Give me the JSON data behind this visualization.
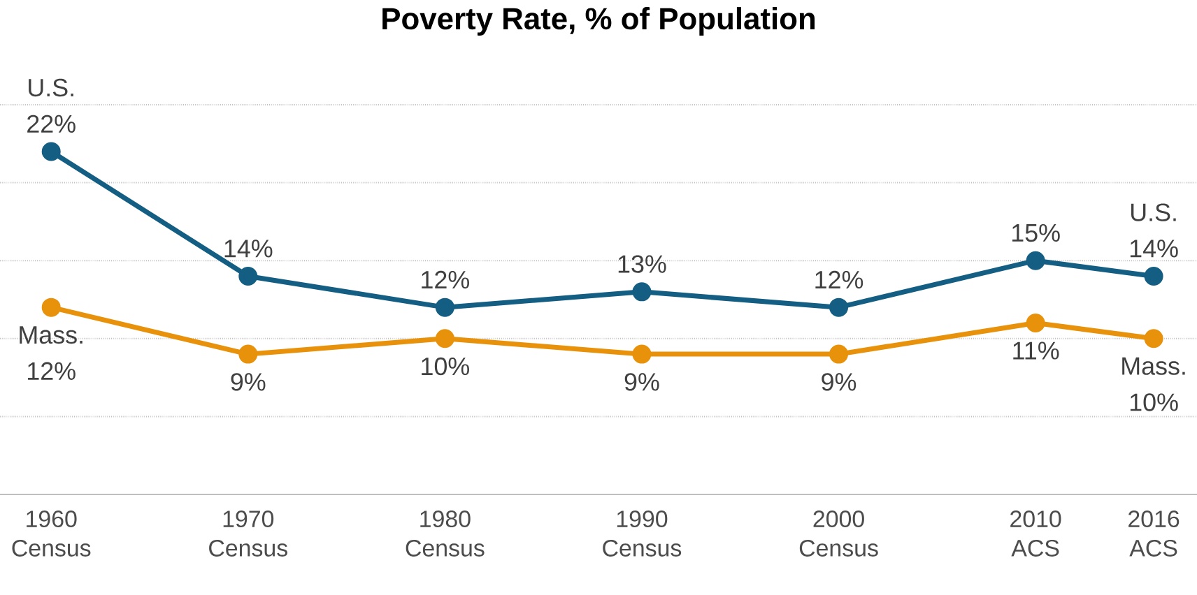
{
  "chart_data": {
    "type": "line",
    "title": "Poverty Rate, % of Population",
    "x": [
      1960,
      1970,
      1980,
      1990,
      2000,
      2010,
      2016
    ],
    "xlim": [
      1957.4,
      2018.2
    ],
    "xticks": [
      {
        "value": 1960,
        "label": "1960 Census"
      },
      {
        "value": 1970,
        "label": "1970 Census"
      },
      {
        "value": 1980,
        "label": "1980 Census"
      },
      {
        "value": 1990,
        "label": "1990 Census"
      },
      {
        "value": 2000,
        "label": "2000 Census"
      },
      {
        "value": 2010,
        "label": "2010 ACS"
      },
      {
        "value": 2016,
        "label": "2016 ACS"
      }
    ],
    "ylim": [
      0,
      25
    ],
    "yticks": [
      {
        "value": 0,
        "label": null
      },
      {
        "value": 5,
        "label": null
      },
      {
        "value": 10,
        "label": null
      },
      {
        "value": 15,
        "label": null
      },
      {
        "value": 20,
        "label": null
      },
      {
        "value": 25,
        "label": null
      }
    ],
    "grid": "y",
    "marker": "circle",
    "series": [
      {
        "name": "U.S.",
        "color": "#135e82",
        "values": [
          22,
          14,
          12,
          13,
          12,
          15,
          14
        ],
        "value_labels": [
          "22%",
          "14%",
          "12%",
          "13%",
          "12%",
          "15%",
          "14%"
        ]
      },
      {
        "name": "Mass.",
        "color": "#e8920c",
        "values": [
          12,
          9,
          10,
          9,
          9,
          11,
          10
        ],
        "value_labels": [
          "12%",
          "9%",
          "10%",
          "9%",
          "9%",
          "11%",
          "10%"
        ]
      }
    ]
  }
}
